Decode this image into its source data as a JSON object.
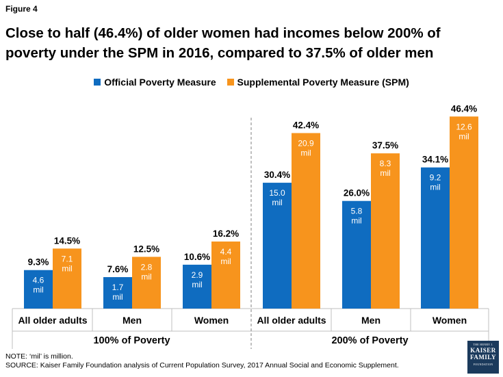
{
  "figure_label": "Figure 4",
  "title_line1": "Close to half (46.4%) of older women had incomes below 200% of",
  "title_line2": "poverty under the SPM in 2016, compared to 37.5% of older men",
  "note": "NOTE: ‘mil’ is million.",
  "source": "SOURCE: Kaiser Family Foundation  analysis of Current Population Survey,  2017 Annual Social and Economic Supplement.",
  "logo": {
    "line1": "THE HENRY J.",
    "line2": "KAISER",
    "line3": "FAMILY",
    "line4": "FOUNDATION"
  },
  "colors": {
    "official": "#0f6cc0",
    "spm": "#f7941d"
  },
  "chart_data": {
    "type": "bar",
    "series": [
      {
        "name": "Official Poverty Measure",
        "values": [
          9.3,
          7.6,
          10.6,
          30.4,
          26.0,
          34.1
        ],
        "value_labels": [
          "9.3%",
          "7.6%",
          "10.6%",
          "30.4%",
          "26.0%",
          "34.1%"
        ],
        "counts": [
          "4.6 mil",
          "1.7 mil",
          "2.9 mil",
          "15.0 mil",
          "5.8 mil",
          "9.2 mil"
        ]
      },
      {
        "name": "Supplemental Poverty Measure (SPM)",
        "values": [
          14.5,
          12.5,
          16.2,
          42.4,
          37.5,
          46.4
        ],
        "value_labels": [
          "14.5%",
          "12.5%",
          "16.2%",
          "42.4%",
          "37.5%",
          "46.4%"
        ],
        "counts": [
          "7.1 mil",
          "2.8 mil",
          "4.4 mil",
          "20.9 mil",
          "8.3 mil",
          "12.6 mil"
        ]
      }
    ],
    "categories": [
      "All older adults",
      "Men",
      "Women",
      "All older adults",
      "Men",
      "Women"
    ],
    "groups": [
      {
        "label": "100% of Poverty",
        "categories": [
          0,
          1,
          2
        ]
      },
      {
        "label": "200% of Poverty",
        "categories": [
          3,
          4,
          5
        ]
      }
    ],
    "ylim": [
      0,
      50
    ],
    "grid": false,
    "legend_position": "top"
  }
}
